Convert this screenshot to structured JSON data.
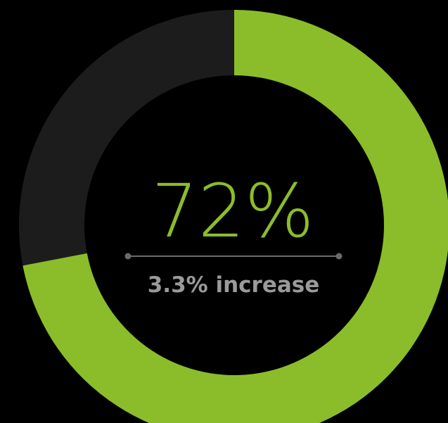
{
  "chart_data": {
    "type": "donut",
    "value_percent": 72,
    "remainder_percent": 28,
    "center_label": "72%",
    "caption": "3.3% increase",
    "colors": {
      "progress": "#8bbd2b",
      "track": "#1c1c1c",
      "background": "#000000",
      "label": "#8bbd2b",
      "caption": "#9a9a9a",
      "divider": "#6a6a6a"
    }
  }
}
